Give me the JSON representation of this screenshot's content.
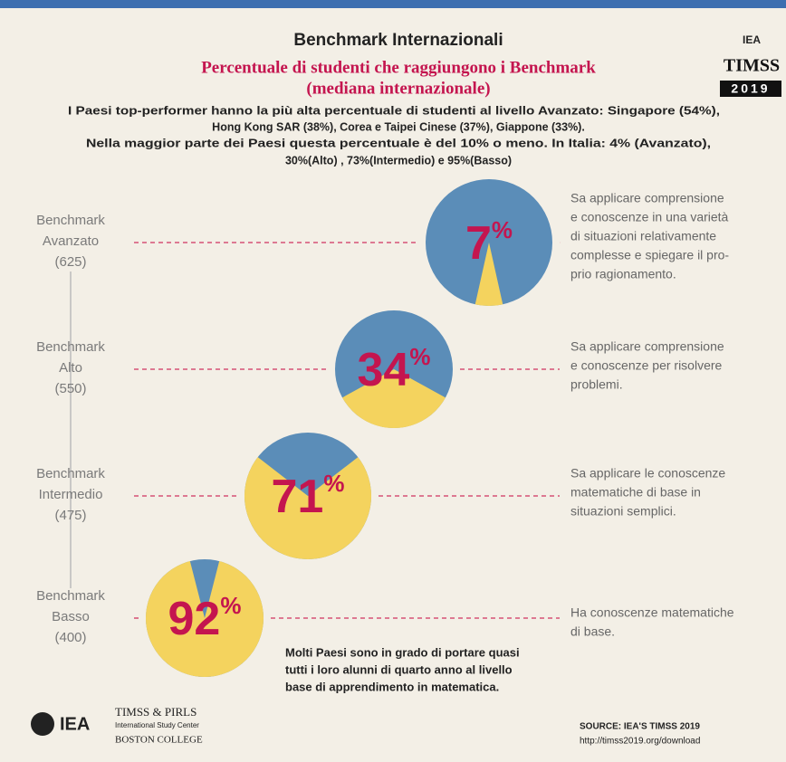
{
  "header": {
    "title": "Benchmark Internazionali",
    "subtitle": [
      "Percentuale di studenti che raggiungono i Benchmark",
      "(mediana internazionale)"
    ],
    "intro": [
      "I Paesi top-performer hanno la più alta percentuale di studenti al livello Avanzato: Singapore (54%),",
      "Hong Kong SAR (38%), Corea e Taipei Cinese (37%), Giappone (33%).",
      "Nella maggior parte dei Paesi questa percentuale è del 10% o meno. In Italia: 4% (Avanzato),",
      "30%(Alto) , 73%(Intermedio) e 95%(Basso)"
    ]
  },
  "logo": {
    "org": "IEA",
    "name": "TIMSS",
    "year": "2019"
  },
  "benchmarks": [
    {
      "level": [
        "Benchmark",
        "Avanzato",
        "(625)"
      ],
      "percent": 7,
      "percent_sign": "%",
      "description": [
        "Sa applicare comprensione",
        "e conoscenze in una varietà",
        "di situazioni relativamente",
        "complesse e spiegare il pro-",
        "prio ragionamento."
      ]
    },
    {
      "level": [
        "Benchmark",
        "Alto",
        "(550)"
      ],
      "percent": 34,
      "percent_sign": "%",
      "description": [
        "Sa applicare comprensione",
        "e conoscenze per risolvere",
        "problemi."
      ]
    },
    {
      "level": [
        "Benchmark",
        "Intermedio",
        "(475)"
      ],
      "percent": 71,
      "percent_sign": "%",
      "description": [
        "Sa applicare le conoscenze",
        "matematiche di base in",
        "situazioni semplici."
      ]
    },
    {
      "level": [
        "Benchmark",
        "Basso",
        "(400)"
      ],
      "percent": 92,
      "percent_sign": "%",
      "description": [
        "Ha conoscenze matematiche",
        "di base."
      ]
    }
  ],
  "note": [
    "Molti Paesi sono in grado di portare quasi",
    "tutti i loro alunni di quarto anno al livello",
    "base di apprendimento in matematica."
  ],
  "footer": {
    "org": "IEA",
    "center": [
      "TIMSS & PIRLS",
      "International Study Center",
      "BOSTON COLLEGE"
    ],
    "source": [
      "SOURCE: IEA'S TIMSS 2019",
      "http://timss2019.org/download"
    ]
  }
}
